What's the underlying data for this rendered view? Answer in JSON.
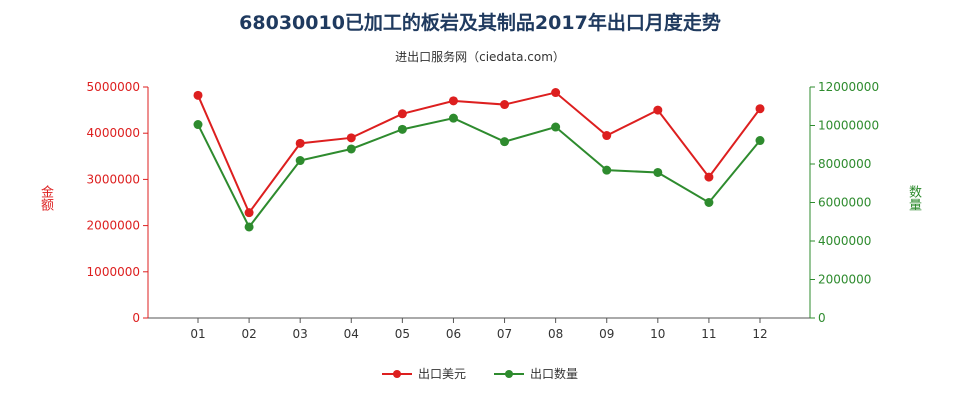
{
  "chart_data": {
    "type": "line",
    "title": "68030010已加工的板岩及其制品2017年出口月度走势",
    "subtitle": "进出口服务网（ciedata.com）",
    "xlabel": "",
    "categories": [
      "01",
      "02",
      "03",
      "04",
      "05",
      "06",
      "07",
      "08",
      "09",
      "10",
      "11",
      "12"
    ],
    "y_left": {
      "label": "金额",
      "ylim": [
        0,
        5000000
      ],
      "ticks": [
        "0",
        "1000000",
        "2000000",
        "3000000",
        "4000000",
        "5000000"
      ],
      "color": "#dd1f1f"
    },
    "y_right": {
      "label": "数量",
      "ylim": [
        0,
        12000000
      ],
      "ticks": [
        "0",
        "2000000",
        "4000000",
        "6000000",
        "8000000",
        "10000000",
        "12000000"
      ],
      "color": "#2e8b2e"
    },
    "series": [
      {
        "name": "出口美元",
        "axis": "left",
        "color": "#dd1f1f",
        "values": [
          4820000,
          2280000,
          3780000,
          3900000,
          4420000,
          4700000,
          4620000,
          4880000,
          3950000,
          4500000,
          3050000,
          4530000
        ]
      },
      {
        "name": "出口数量",
        "axis": "right",
        "color": "#2e8b2e",
        "values": [
          10050000,
          4730000,
          8180000,
          8780000,
          9800000,
          10380000,
          9160000,
          9920000,
          7680000,
          7560000,
          6000000,
          9220000
        ]
      }
    ],
    "grid": false,
    "legend_position": "bottom-center"
  }
}
